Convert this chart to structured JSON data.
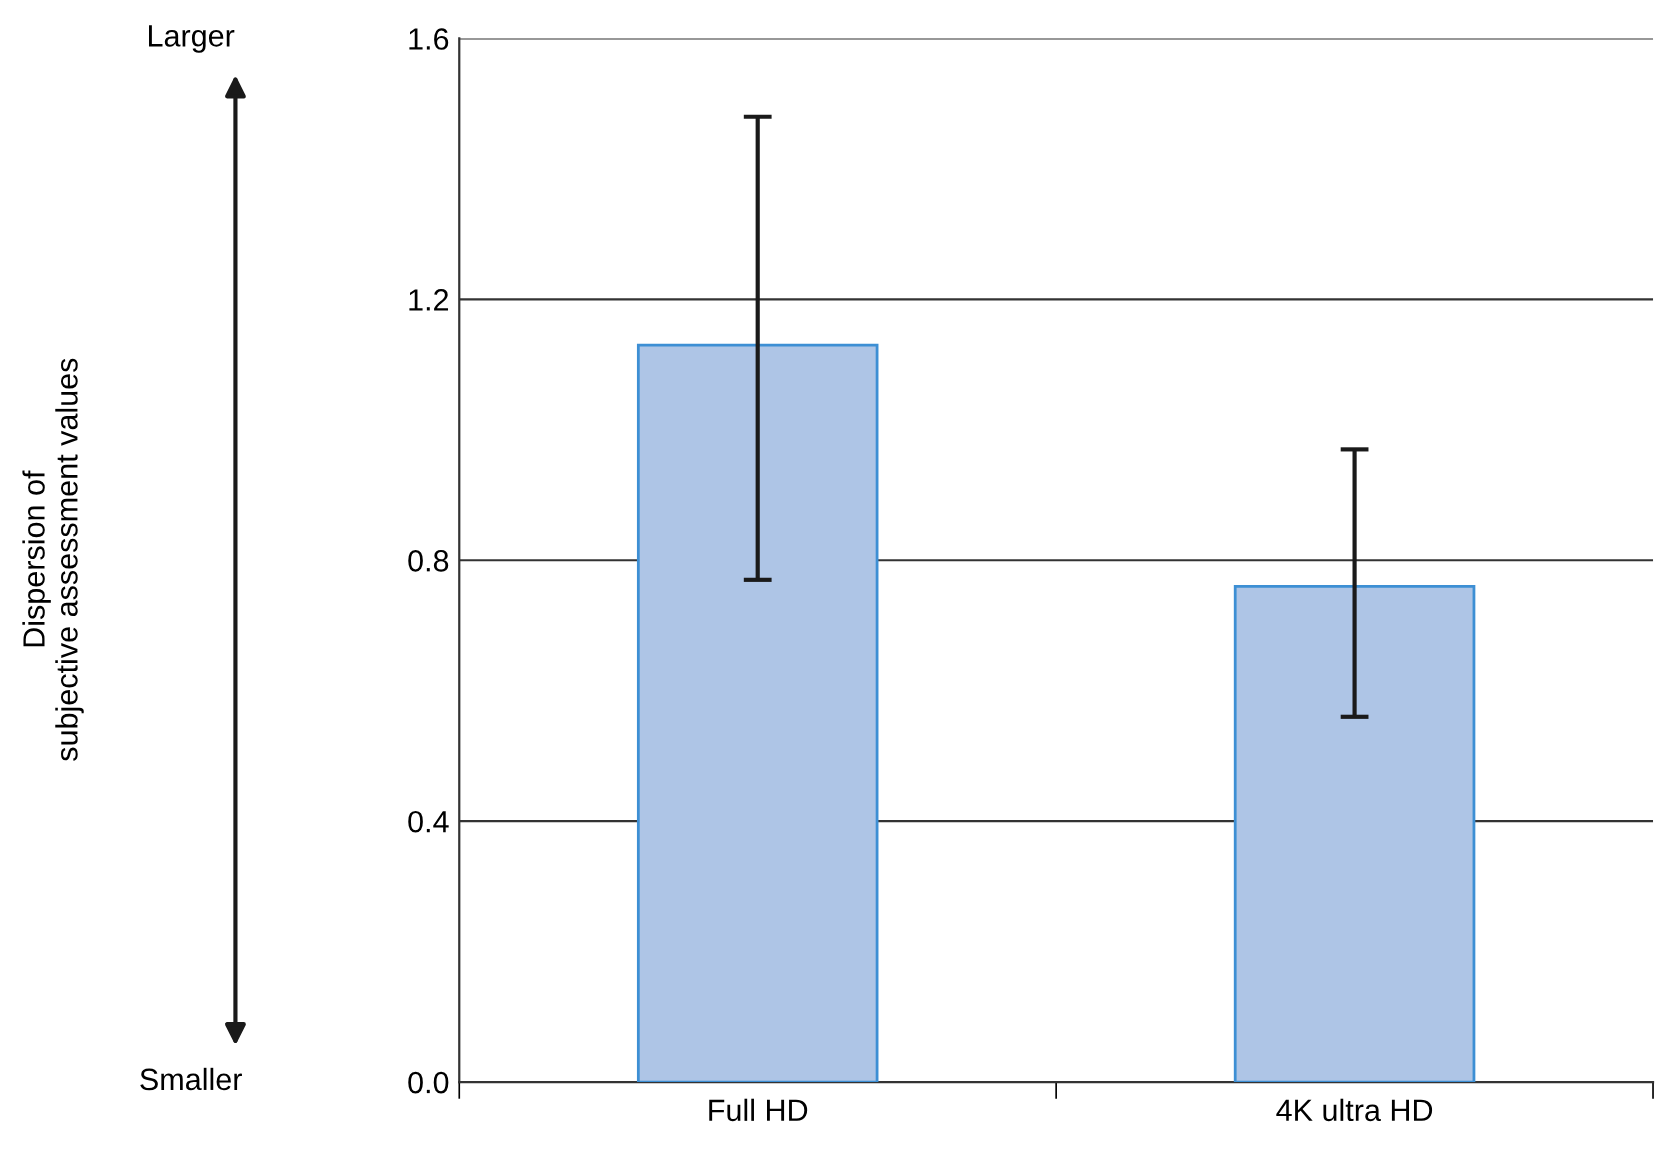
{
  "chart_data": {
    "type": "bar",
    "categories": [
      "Full HD",
      "4K ultra HD"
    ],
    "values": [
      1.13,
      0.76
    ],
    "errors": [
      [
        0.77,
        1.48
      ],
      [
        0.56,
        0.97
      ]
    ],
    "color": "#aec5e6",
    "ylim": [
      0,
      1.6
    ],
    "yticks": [
      {
        "value": 0,
        "label": "0.0"
      },
      {
        "value": 0.4,
        "label": "0.4"
      },
      {
        "value": 0.8,
        "label": "0.8"
      },
      {
        "value": 1.2,
        "label": "1.2"
      },
      {
        "value": 1.6,
        "label": "1.6"
      }
    ],
    "grid": "y",
    "annotations": [
      "Larger",
      "Smaller",
      "Dispersion of\nsubjective assessment values"
    ]
  }
}
